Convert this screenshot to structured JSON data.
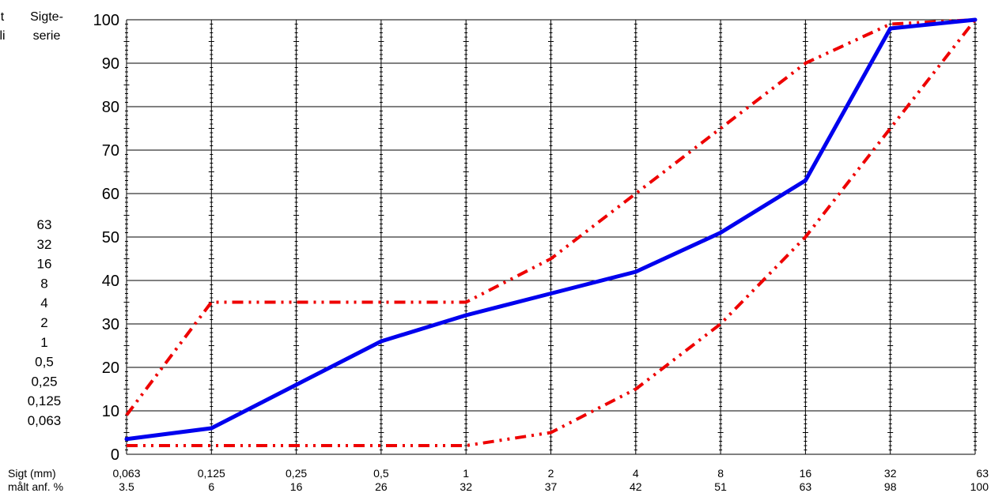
{
  "header": {
    "cut_left_line1": "t",
    "cut_left_line2": "li",
    "sieve_series_line1": "Sigte-",
    "sieve_series_line2": "serie"
  },
  "sieve_series_list": [
    "63",
    "32",
    "16",
    "8",
    "4",
    "2",
    "1",
    "0,5",
    "0,25",
    "0,125",
    "0,063"
  ],
  "row_labels": {
    "sieve": "Sigt (mm)",
    "measured": "målt anf. %"
  },
  "colors": {
    "measured": "#0000ee",
    "limits": "#ee0000",
    "grid": "#000000"
  },
  "chart_data": {
    "type": "line",
    "categories": [
      "0,063",
      "0,125",
      "0,25",
      "0,5",
      "1",
      "2",
      "4",
      "8",
      "16",
      "32",
      "63"
    ],
    "measured_labels": [
      "3.5",
      "6",
      "16",
      "26",
      "32",
      "37",
      "42",
      "51",
      "63",
      "98",
      "100"
    ],
    "ylim": [
      0,
      100
    ],
    "yticks": [
      "0",
      "10",
      "20",
      "30",
      "40",
      "50",
      "60",
      "70",
      "80",
      "90",
      "100"
    ],
    "grid": true,
    "series": [
      {
        "values": [
          3.5,
          6,
          16,
          26,
          32,
          37,
          42,
          51,
          63,
          98,
          100
        ],
        "color": "#0000ee",
        "style": "solid"
      },
      {
        "values": [
          9,
          35,
          35,
          35,
          35,
          45,
          60,
          75,
          90,
          99,
          100
        ],
        "color": "#ee0000",
        "style": "dash-dot-dot"
      },
      {
        "values": [
          2,
          2,
          2,
          2,
          2,
          5,
          15,
          30,
          50,
          75,
          100
        ],
        "color": "#ee0000",
        "style": "dash-dot-dot"
      }
    ]
  }
}
